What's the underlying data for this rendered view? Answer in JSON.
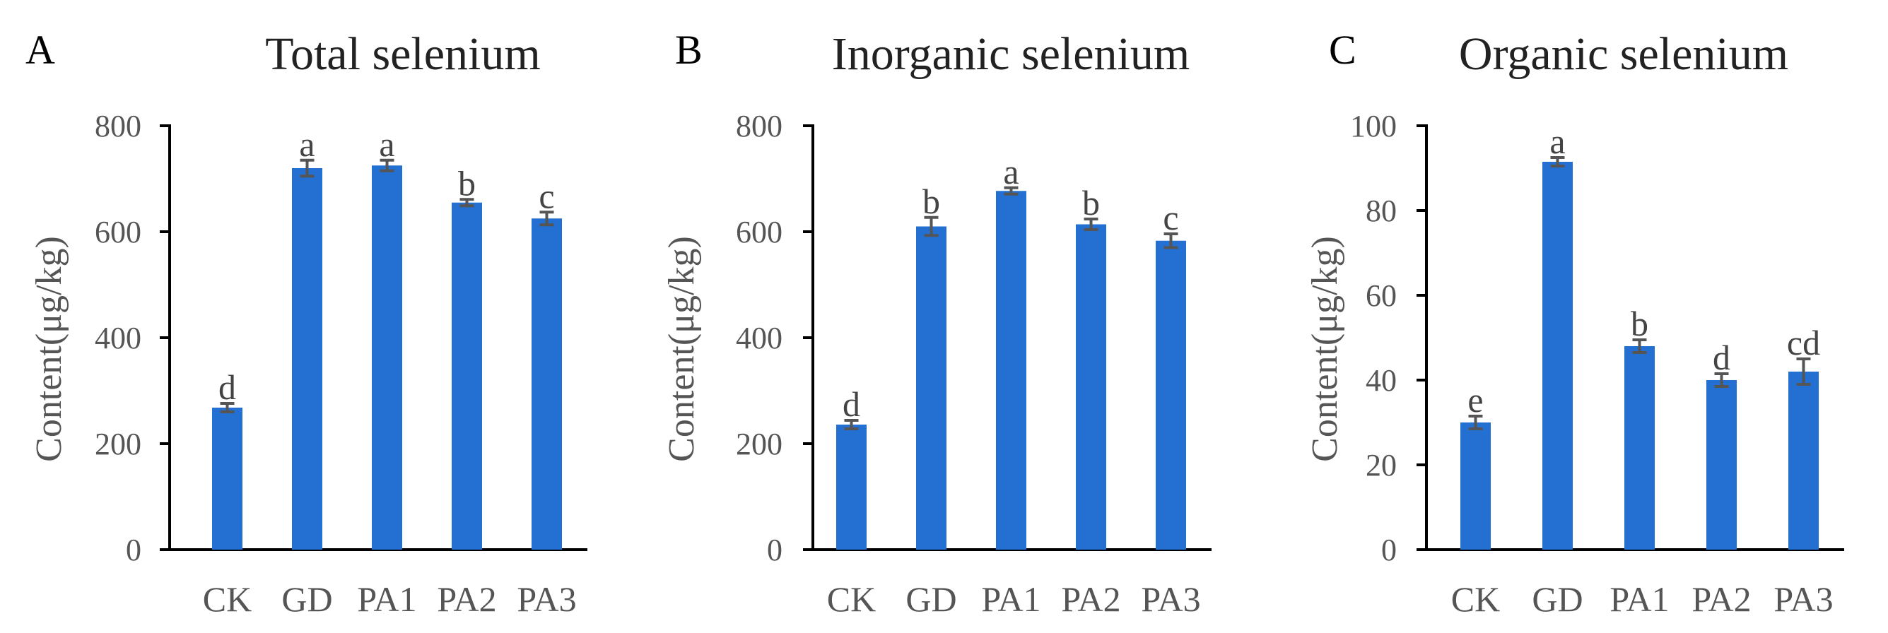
{
  "chart_data": [
    {
      "type": "bar",
      "panel": "A",
      "title": "Total selenium",
      "xlabel": "",
      "ylabel": "Content(μg/kg)",
      "ylim": [
        0,
        800
      ],
      "yticks": [
        0,
        200,
        400,
        600,
        800
      ],
      "categories": [
        "CK",
        "GD",
        "PA1",
        "PA2",
        "PA3"
      ],
      "values": [
        268,
        720,
        725,
        655,
        625
      ],
      "errors": [
        8,
        15,
        10,
        6,
        12
      ],
      "significance": [
        "d",
        "a",
        "a",
        "b",
        "c"
      ],
      "bar_color": "#2470d2",
      "grid": false,
      "legend": "none"
    },
    {
      "type": "bar",
      "panel": "B",
      "title": "Inorganic selenium",
      "xlabel": "",
      "ylabel": "Content(μg/kg)",
      "ylim": [
        0,
        800
      ],
      "yticks": [
        0,
        200,
        400,
        600,
        800
      ],
      "categories": [
        "CK",
        "GD",
        "PA1",
        "PA2",
        "PA3"
      ],
      "values": [
        236,
        610,
        677,
        614,
        583
      ],
      "errors": [
        8,
        17,
        6,
        10,
        13
      ],
      "significance": [
        "d",
        "b",
        "a",
        "b",
        "c"
      ],
      "bar_color": "#2470d2",
      "grid": false,
      "legend": "none"
    },
    {
      "type": "bar",
      "panel": "C",
      "title": "Organic selenium",
      "xlabel": "",
      "ylabel": "Content(μg/kg)",
      "ylim": [
        0,
        100
      ],
      "yticks": [
        0,
        20,
        40,
        60,
        80,
        100
      ],
      "categories": [
        "CK",
        "GD",
        "PA1",
        "PA2",
        "PA3"
      ],
      "values": [
        30,
        91.5,
        48,
        40,
        42
      ],
      "errors": [
        1.5,
        1,
        1.5,
        1.5,
        3
      ],
      "significance": [
        "e",
        "a",
        "b",
        "d",
        "cd"
      ],
      "bar_color": "#2470d2",
      "grid": false,
      "legend": "none"
    }
  ]
}
